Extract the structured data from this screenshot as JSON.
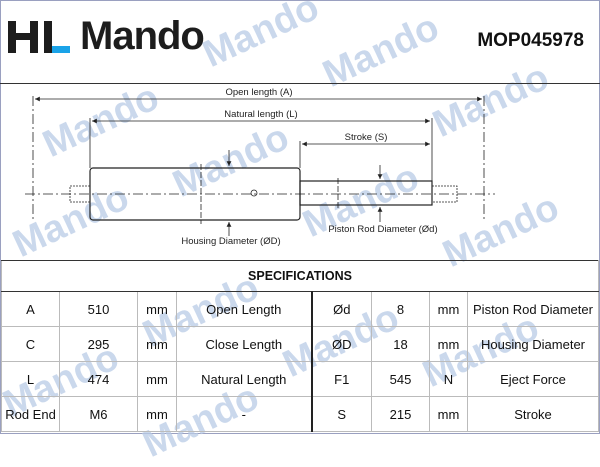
{
  "header": {
    "brand": "Mando",
    "brand_prefix": "HL",
    "part_number": "MOP045978"
  },
  "diagram": {
    "labels": {
      "open_length": "Open length (A)",
      "natural_length": "Natural length (L)",
      "stroke": "Stroke (S)",
      "housing_diameter": "Housing Diameter (ØD)",
      "piston_rod_diameter": "Piston Rod Diameter (Ød)"
    }
  },
  "watermark": "Mando",
  "specs": {
    "title": "SPECIFICATIONS",
    "rows": [
      [
        "A",
        "510",
        "mm",
        "Open Length",
        "Ød",
        "8",
        "mm",
        "Piston Rod Diameter"
      ],
      [
        "C",
        "295",
        "mm",
        "Close Length",
        "ØD",
        "18",
        "mm",
        "Housing Diameter"
      ],
      [
        "L",
        "474",
        "mm",
        "Natural Length",
        "F1",
        "545",
        "N",
        "Eject Force"
      ],
      [
        "Rod End",
        "M6",
        "mm",
        "-",
        "S",
        "215",
        "mm",
        "Stroke"
      ]
    ]
  },
  "colors": {
    "accent": "#1aa3e8",
    "watermark": "#b9cbe6"
  }
}
